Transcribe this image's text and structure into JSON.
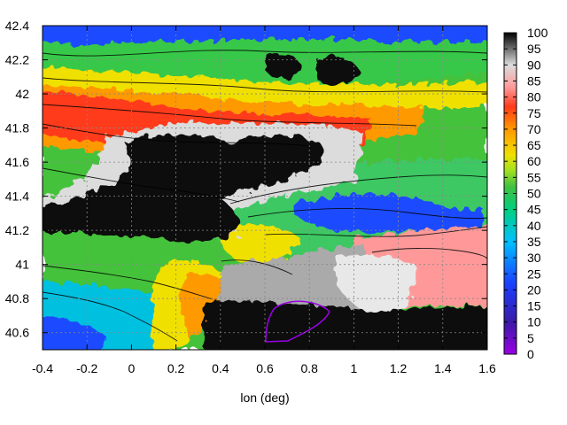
{
  "chart_data": {
    "type": "heatmap",
    "title": "",
    "xlabel": "lon (deg)",
    "ylabel": "",
    "xlim": [
      -0.4,
      1.6
    ],
    "ylim": [
      40.5,
      42.4
    ],
    "x_ticks": [
      "-0.4",
      "-0.2",
      "0",
      "0.2",
      "0.4",
      "0.6",
      "0.8",
      "1",
      "1.2",
      "1.4",
      "1.6"
    ],
    "y_ticks": [
      "40.6",
      "40.8",
      "41",
      "41.2",
      "41.4",
      "41.6",
      "41.8",
      "42",
      "42.2",
      "42.4"
    ],
    "grid": true,
    "colorbar": {
      "range": [
        0,
        100
      ],
      "ticks": [
        "0",
        "5",
        "10",
        "15",
        "20",
        "25",
        "30",
        "35",
        "40",
        "45",
        "50",
        "55",
        "60",
        "65",
        "70",
        "75",
        "80",
        "85",
        "90",
        "95",
        "100"
      ],
      "colors": [
        "#9a00e6",
        "#1a1aa6",
        "#1a40ff",
        "#00c0ff",
        "#00d080",
        "#40c040",
        "#a0e020",
        "#f0e000",
        "#ff9900",
        "#ff3a1a",
        "#ff9999",
        "#dcdcdc",
        "#000000"
      ]
    },
    "regions": [
      {
        "name": "dark-band-west",
        "value": 97
      },
      {
        "name": "dark-central",
        "value": 96
      },
      {
        "name": "white-halo",
        "value": 90
      },
      {
        "name": "pink-east",
        "value": 82
      },
      {
        "name": "gray-southeast",
        "value": 92
      },
      {
        "name": "red-north",
        "value": 75
      },
      {
        "name": "orange-belt",
        "value": 68
      },
      {
        "name": "yellow-belt",
        "value": 60
      },
      {
        "name": "green-north",
        "value": 48
      },
      {
        "name": "blue-northwest",
        "value": 28
      },
      {
        "name": "green-southwest",
        "value": 47
      },
      {
        "name": "cyan-southwest",
        "value": 40
      },
      {
        "name": "blue-southwest",
        "value": 30
      },
      {
        "name": "green-center-east",
        "value": 46
      },
      {
        "name": "blue-center-east",
        "value": 30
      },
      {
        "name": "purple-minimum",
        "value": 8
      }
    ]
  }
}
